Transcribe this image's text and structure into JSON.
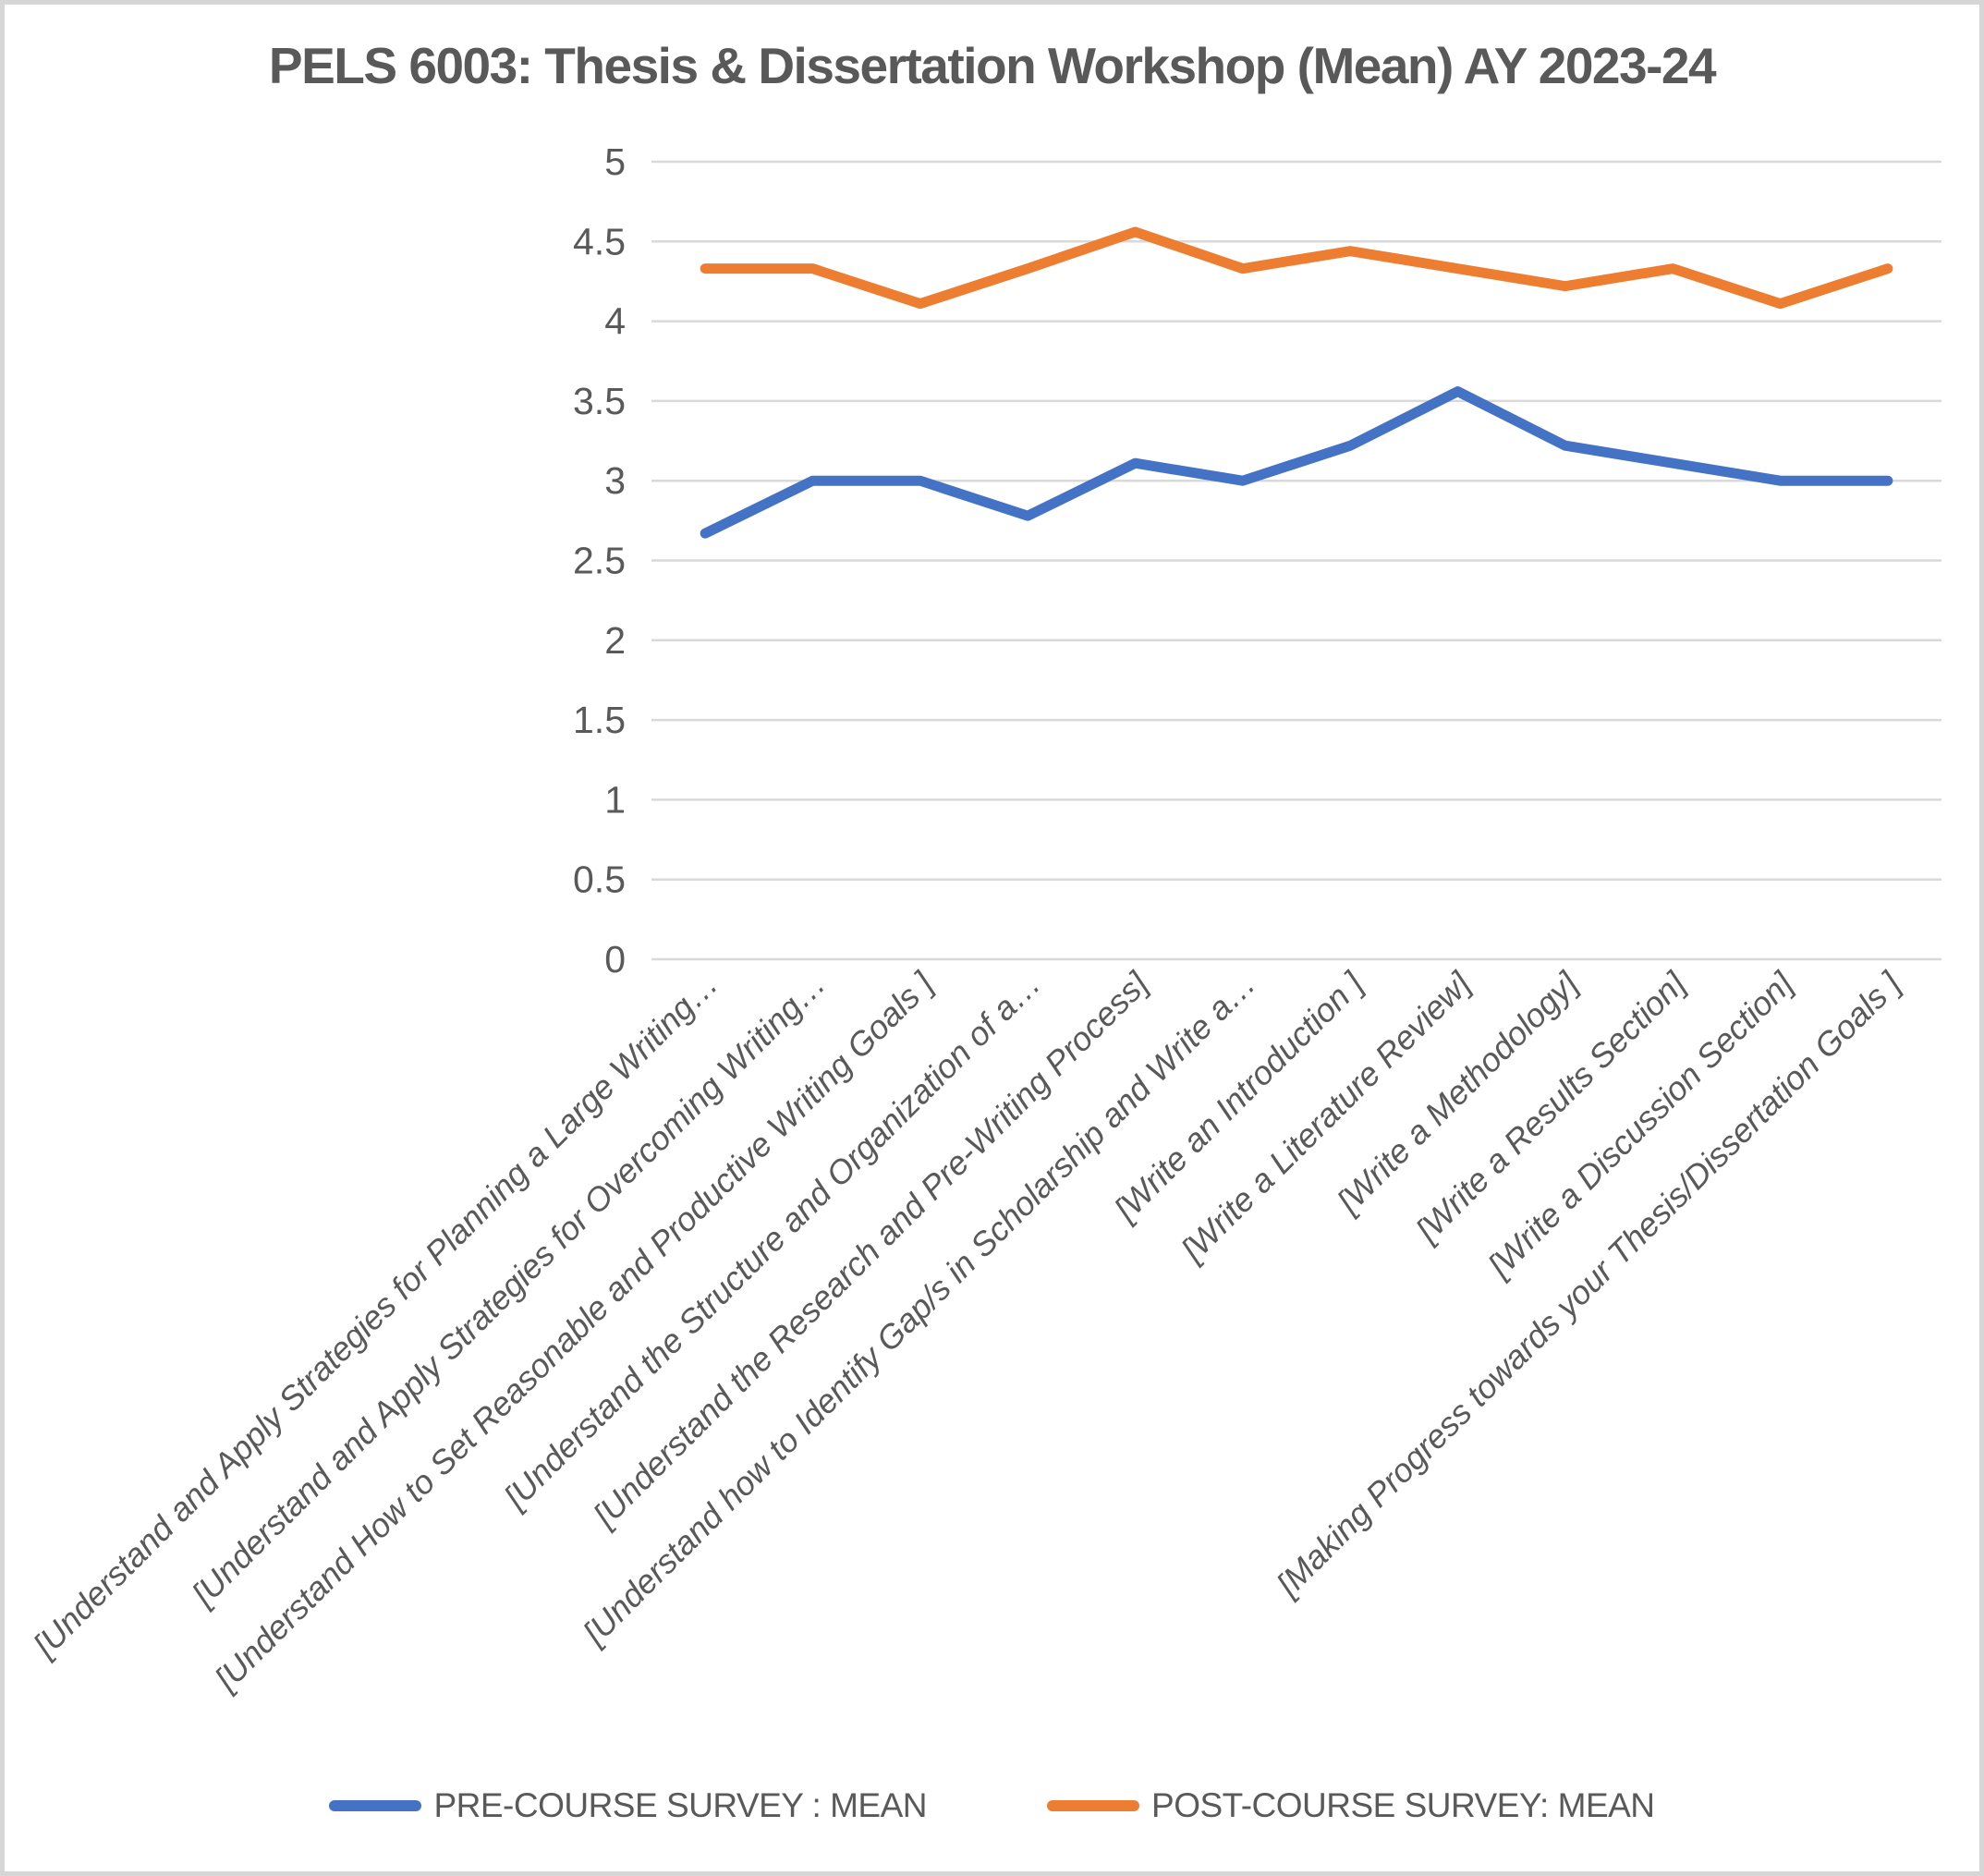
{
  "title": "PELS 6003: Thesis & Dissertation Workshop (Mean) AY 2023-24",
  "colors": {
    "pre_course_line": "#4472C4",
    "post_course_line": "#ED7D31",
    "gridline": "#D9D9D9",
    "text": "#595959",
    "canvas_border": "#D6D6D6",
    "background": "#FFFFFF"
  },
  "chart_data": {
    "type": "line",
    "title": "PELS 6003: Thesis & Dissertation Workshop (Mean) AY 2023-24",
    "categories": [
      "[Understand and Apply Strategies for Planning a Large Writing…",
      "[Understand and Apply Strategies for Overcoming Writing…",
      "[Understand How to Set Reasonable and Productive Writing Goals ]",
      "[Understand the Structure and Organization of a…",
      "[Understand the Research and Pre-Writing Process]",
      "[Understand how to Identify Gap/s in Scholarship and Write a…",
      "[Write an Introduction ]",
      "[Write a Literature Review]",
      "[Write a Methodology]",
      "[Write a Results Section]",
      "[Write a Discussion Section]",
      "[Making Progress towards your Thesis/Dissertation Goals ]"
    ],
    "series": [
      {
        "name": "PRE-COURSE SURVEY : MEAN",
        "color": "#4472C4",
        "values": [
          2.67,
          3,
          3,
          2.78,
          3.11,
          3,
          3.22,
          3.56,
          3.22,
          3.11,
          3,
          3
        ]
      },
      {
        "name": "POST-COURSE SURVEY: MEAN",
        "color": "#ED7D31",
        "values": [
          4.33,
          4.33,
          4.11,
          4.33,
          4.56,
          4.33,
          4.44,
          4.33,
          4.22,
          4.33,
          4.11,
          4.33
        ]
      }
    ],
    "xlabel": "",
    "ylabel": "",
    "ylim": [
      0,
      5
    ],
    "ytick_step": 0.5,
    "yticks": [
      "0",
      "0.5",
      "1",
      "1.5",
      "2",
      "2.5",
      "3",
      "3.5",
      "4",
      "4.5",
      "5"
    ],
    "grid": true,
    "legend_position": "bottom",
    "category_label_rotation_deg": 45
  }
}
